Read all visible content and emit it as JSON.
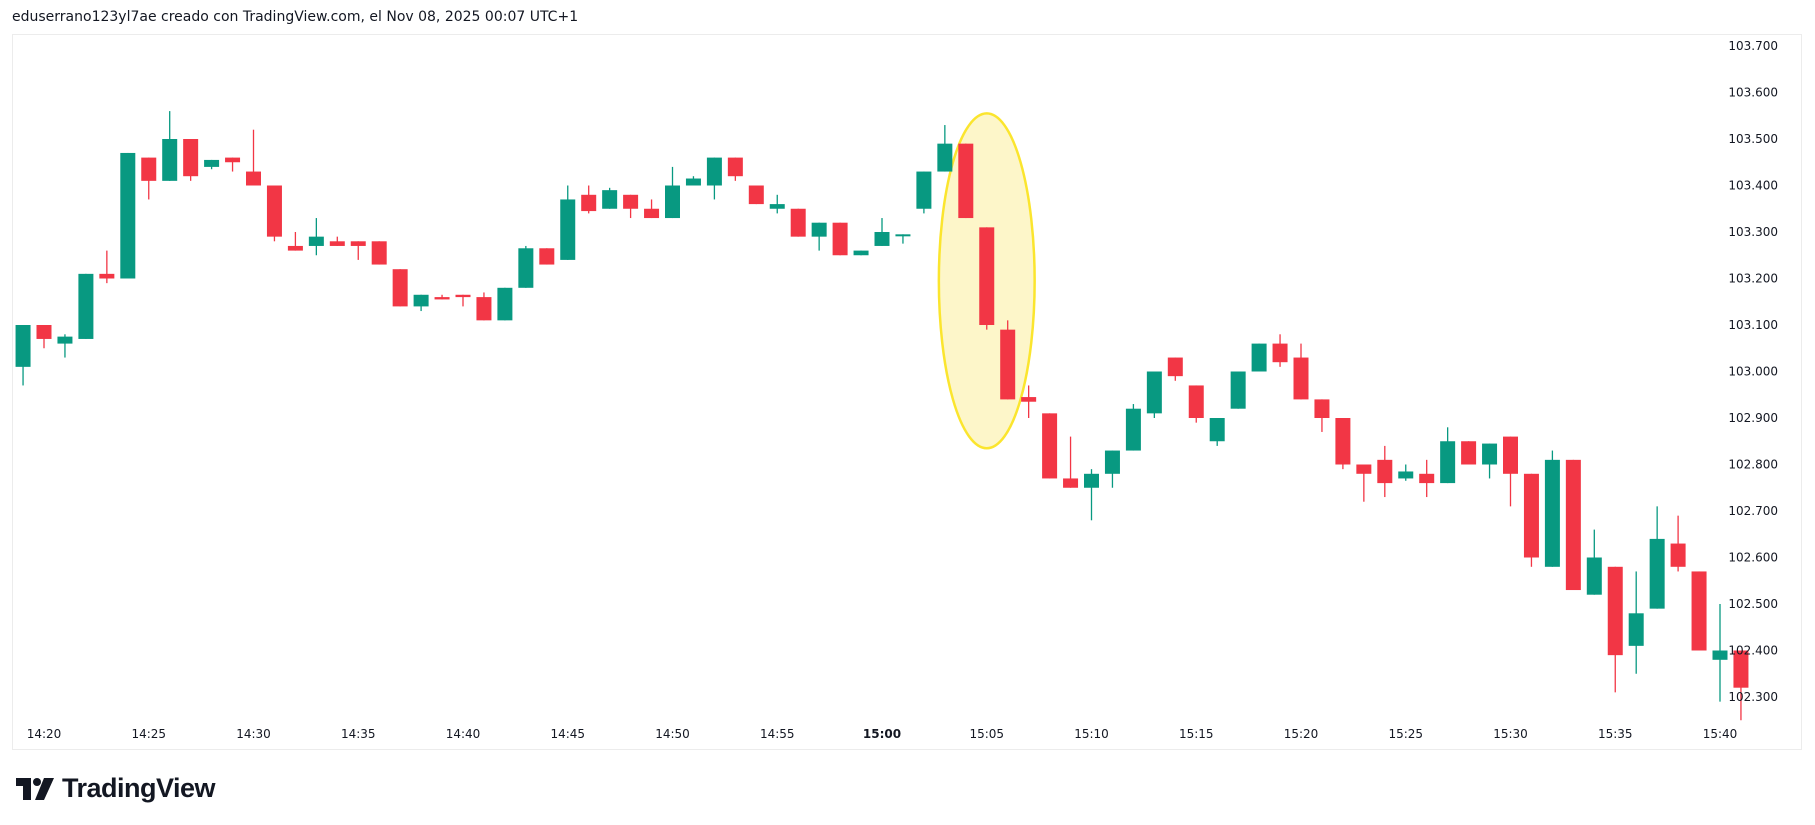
{
  "header": {
    "caption": "eduserrano123yl7ae creado con TradingView.com, el Nov 08, 2025 00:07 UTC+1"
  },
  "footer": {
    "logo_text": "TradingView"
  },
  "colors": {
    "up": "#089981",
    "down": "#f23645",
    "highlight_stroke": "#fbe52e",
    "highlight_fill": "#fdf6c9",
    "axis_text": "#131722",
    "border": "#ececec"
  },
  "chart_data": {
    "type": "candlestick",
    "title": "",
    "xlabel": "",
    "ylabel": "",
    "interval": "1 minute",
    "ylim": [
      102.25,
      103.75
    ],
    "grid": false,
    "y_ticks": [
      "103.700",
      "103.600",
      "103.500",
      "103.400",
      "103.300",
      "103.200",
      "103.100",
      "103.000",
      "102.900",
      "102.800",
      "102.700",
      "102.600",
      "102.500",
      "102.400",
      "102.300"
    ],
    "x_ticks": [
      "14:20",
      "14:25",
      "14:30",
      "14:35",
      "14:40",
      "14:45",
      "14:50",
      "14:55",
      "15:00",
      "15:05",
      "15:10",
      "15:15",
      "15:20",
      "15:25",
      "15:30",
      "15:35",
      "15:40"
    ],
    "x_tick_bold": "15:00",
    "annotations": [
      {
        "type": "ellipse",
        "color": "#fbe52e",
        "fill": "#fdf6c9",
        "from_time": "15:03",
        "to_time": "15:07",
        "price_top": 103.555,
        "price_bottom": 102.835
      }
    ],
    "candles": [
      {
        "t": "14:19",
        "o": 103.01,
        "h": 103.1,
        "l": 102.97,
        "c": 103.1
      },
      {
        "t": "14:20",
        "o": 103.1,
        "h": 103.1,
        "l": 103.05,
        "c": 103.07
      },
      {
        "t": "14:21",
        "o": 103.06,
        "h": 103.08,
        "l": 103.03,
        "c": 103.075
      },
      {
        "t": "14:22",
        "o": 103.07,
        "h": 103.21,
        "l": 103.07,
        "c": 103.21
      },
      {
        "t": "14:23",
        "o": 103.21,
        "h": 103.26,
        "l": 103.19,
        "c": 103.2
      },
      {
        "t": "14:24",
        "o": 103.2,
        "h": 103.47,
        "l": 103.2,
        "c": 103.47
      },
      {
        "t": "14:25",
        "o": 103.46,
        "h": 103.46,
        "l": 103.37,
        "c": 103.41
      },
      {
        "t": "14:26",
        "o": 103.41,
        "h": 103.56,
        "l": 103.41,
        "c": 103.5
      },
      {
        "t": "14:27",
        "o": 103.5,
        "h": 103.5,
        "l": 103.41,
        "c": 103.42
      },
      {
        "t": "14:28",
        "o": 103.44,
        "h": 103.455,
        "l": 103.435,
        "c": 103.455
      },
      {
        "t": "14:29",
        "o": 103.46,
        "h": 103.46,
        "l": 103.43,
        "c": 103.45
      },
      {
        "t": "14:30",
        "o": 103.43,
        "h": 103.52,
        "l": 103.4,
        "c": 103.4
      },
      {
        "t": "14:31",
        "o": 103.4,
        "h": 103.4,
        "l": 103.28,
        "c": 103.29
      },
      {
        "t": "14:32",
        "o": 103.27,
        "h": 103.3,
        "l": 103.26,
        "c": 103.26
      },
      {
        "t": "14:33",
        "o": 103.27,
        "h": 103.33,
        "l": 103.25,
        "c": 103.29
      },
      {
        "t": "14:34",
        "o": 103.28,
        "h": 103.29,
        "l": 103.27,
        "c": 103.27
      },
      {
        "t": "14:35",
        "o": 103.28,
        "h": 103.28,
        "l": 103.24,
        "c": 103.27
      },
      {
        "t": "14:36",
        "o": 103.28,
        "h": 103.28,
        "l": 103.23,
        "c": 103.23
      },
      {
        "t": "14:37",
        "o": 103.22,
        "h": 103.22,
        "l": 103.14,
        "c": 103.14
      },
      {
        "t": "14:38",
        "o": 103.14,
        "h": 103.165,
        "l": 103.13,
        "c": 103.165
      },
      {
        "t": "14:39",
        "o": 103.16,
        "h": 103.165,
        "l": 103.155,
        "c": 103.155
      },
      {
        "t": "14:40",
        "o": 103.165,
        "h": 103.165,
        "l": 103.14,
        "c": 103.16
      },
      {
        "t": "14:41",
        "o": 103.16,
        "h": 103.17,
        "l": 103.11,
        "c": 103.11
      },
      {
        "t": "14:42",
        "o": 103.11,
        "h": 103.18,
        "l": 103.11,
        "c": 103.18
      },
      {
        "t": "14:43",
        "o": 103.18,
        "h": 103.27,
        "l": 103.18,
        "c": 103.265
      },
      {
        "t": "14:44",
        "o": 103.265,
        "h": 103.265,
        "l": 103.23,
        "c": 103.23
      },
      {
        "t": "14:45",
        "o": 103.24,
        "h": 103.4,
        "l": 103.24,
        "c": 103.37
      },
      {
        "t": "14:46",
        "o": 103.38,
        "h": 103.4,
        "l": 103.34,
        "c": 103.345
      },
      {
        "t": "14:47",
        "o": 103.35,
        "h": 103.395,
        "l": 103.35,
        "c": 103.39
      },
      {
        "t": "14:48",
        "o": 103.38,
        "h": 103.38,
        "l": 103.33,
        "c": 103.35
      },
      {
        "t": "14:49",
        "o": 103.35,
        "h": 103.37,
        "l": 103.33,
        "c": 103.33
      },
      {
        "t": "14:50",
        "o": 103.33,
        "h": 103.44,
        "l": 103.33,
        "c": 103.4
      },
      {
        "t": "14:51",
        "o": 103.4,
        "h": 103.42,
        "l": 103.4,
        "c": 103.415
      },
      {
        "t": "14:52",
        "o": 103.4,
        "h": 103.46,
        "l": 103.37,
        "c": 103.46
      },
      {
        "t": "14:53",
        "o": 103.46,
        "h": 103.46,
        "l": 103.41,
        "c": 103.42
      },
      {
        "t": "14:54",
        "o": 103.4,
        "h": 103.4,
        "l": 103.36,
        "c": 103.36
      },
      {
        "t": "14:55",
        "o": 103.35,
        "h": 103.38,
        "l": 103.34,
        "c": 103.36
      },
      {
        "t": "14:56",
        "o": 103.35,
        "h": 103.35,
        "l": 103.29,
        "c": 103.29
      },
      {
        "t": "14:57",
        "o": 103.29,
        "h": 103.32,
        "l": 103.26,
        "c": 103.32
      },
      {
        "t": "14:58",
        "o": 103.32,
        "h": 103.32,
        "l": 103.25,
        "c": 103.25
      },
      {
        "t": "14:59",
        "o": 103.25,
        "h": 103.26,
        "l": 103.25,
        "c": 103.26
      },
      {
        "t": "15:00",
        "o": 103.27,
        "h": 103.33,
        "l": 103.27,
        "c": 103.3
      },
      {
        "t": "15:01",
        "o": 103.295,
        "h": 103.295,
        "l": 103.275,
        "c": 103.295
      },
      {
        "t": "15:02",
        "o": 103.35,
        "h": 103.43,
        "l": 103.34,
        "c": 103.43
      },
      {
        "t": "15:03",
        "o": 103.43,
        "h": 103.53,
        "l": 103.43,
        "c": 103.49
      },
      {
        "t": "15:04",
        "o": 103.49,
        "h": 103.49,
        "l": 103.33,
        "c": 103.33
      },
      {
        "t": "15:05",
        "o": 103.31,
        "h": 103.31,
        "l": 103.09,
        "c": 103.1
      },
      {
        "t": "15:06",
        "o": 103.09,
        "h": 103.11,
        "l": 102.94,
        "c": 102.94
      },
      {
        "t": "15:07",
        "o": 102.945,
        "h": 102.97,
        "l": 102.9,
        "c": 102.935
      },
      {
        "t": "15:08",
        "o": 102.91,
        "h": 102.91,
        "l": 102.77,
        "c": 102.77
      },
      {
        "t": "15:09",
        "o": 102.77,
        "h": 102.86,
        "l": 102.75,
        "c": 102.75
      },
      {
        "t": "15:10",
        "o": 102.75,
        "h": 102.79,
        "l": 102.68,
        "c": 102.78
      },
      {
        "t": "15:11",
        "o": 102.78,
        "h": 102.83,
        "l": 102.75,
        "c": 102.83
      },
      {
        "t": "15:12",
        "o": 102.83,
        "h": 102.93,
        "l": 102.83,
        "c": 102.92
      },
      {
        "t": "15:13",
        "o": 102.91,
        "h": 103.0,
        "l": 102.9,
        "c": 103.0
      },
      {
        "t": "15:14",
        "o": 103.03,
        "h": 103.03,
        "l": 102.98,
        "c": 102.99
      },
      {
        "t": "15:15",
        "o": 102.97,
        "h": 102.97,
        "l": 102.89,
        "c": 102.9
      },
      {
        "t": "15:16",
        "o": 102.85,
        "h": 102.9,
        "l": 102.84,
        "c": 102.9
      },
      {
        "t": "15:17",
        "o": 102.92,
        "h": 103.0,
        "l": 102.92,
        "c": 103.0
      },
      {
        "t": "15:18",
        "o": 103.0,
        "h": 103.06,
        "l": 103.0,
        "c": 103.06
      },
      {
        "t": "15:19",
        "o": 103.06,
        "h": 103.08,
        "l": 103.01,
        "c": 103.02
      },
      {
        "t": "15:20",
        "o": 103.03,
        "h": 103.06,
        "l": 102.94,
        "c": 102.94
      },
      {
        "t": "15:21",
        "o": 102.94,
        "h": 102.94,
        "l": 102.87,
        "c": 102.9
      },
      {
        "t": "15:22",
        "o": 102.9,
        "h": 102.9,
        "l": 102.79,
        "c": 102.8
      },
      {
        "t": "15:23",
        "o": 102.8,
        "h": 102.8,
        "l": 102.72,
        "c": 102.78
      },
      {
        "t": "15:24",
        "o": 102.81,
        "h": 102.84,
        "l": 102.73,
        "c": 102.76
      },
      {
        "t": "15:25",
        "o": 102.77,
        "h": 102.8,
        "l": 102.765,
        "c": 102.785
      },
      {
        "t": "15:26",
        "o": 102.78,
        "h": 102.81,
        "l": 102.73,
        "c": 102.76
      },
      {
        "t": "15:27",
        "o": 102.76,
        "h": 102.88,
        "l": 102.76,
        "c": 102.85
      },
      {
        "t": "15:28",
        "o": 102.85,
        "h": 102.85,
        "l": 102.8,
        "c": 102.8
      },
      {
        "t": "15:29",
        "o": 102.8,
        "h": 102.845,
        "l": 102.77,
        "c": 102.845
      },
      {
        "t": "15:30",
        "o": 102.86,
        "h": 102.86,
        "l": 102.71,
        "c": 102.78
      },
      {
        "t": "15:31",
        "o": 102.78,
        "h": 102.78,
        "l": 102.58,
        "c": 102.6
      },
      {
        "t": "15:32",
        "o": 102.58,
        "h": 102.83,
        "l": 102.58,
        "c": 102.81
      },
      {
        "t": "15:33",
        "o": 102.81,
        "h": 102.81,
        "l": 102.53,
        "c": 102.53
      },
      {
        "t": "15:34",
        "o": 102.52,
        "h": 102.66,
        "l": 102.52,
        "c": 102.6
      },
      {
        "t": "15:35",
        "o": 102.58,
        "h": 102.58,
        "l": 102.31,
        "c": 102.39
      },
      {
        "t": "15:36",
        "o": 102.41,
        "h": 102.57,
        "l": 102.35,
        "c": 102.48
      },
      {
        "t": "15:37",
        "o": 102.49,
        "h": 102.71,
        "l": 102.49,
        "c": 102.64
      },
      {
        "t": "15:38",
        "o": 102.63,
        "h": 102.69,
        "l": 102.57,
        "c": 102.58
      },
      {
        "t": "15:39",
        "o": 102.57,
        "h": 102.57,
        "l": 102.4,
        "c": 102.4
      },
      {
        "t": "15:40",
        "o": 102.38,
        "h": 102.5,
        "l": 102.29,
        "c": 102.4
      },
      {
        "t": "15:41",
        "o": 102.4,
        "h": 102.4,
        "l": 102.25,
        "c": 102.32
      }
    ]
  }
}
